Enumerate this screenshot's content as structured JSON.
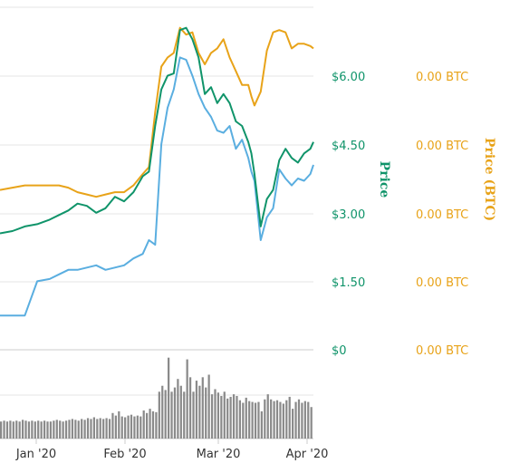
{
  "chart_data": {
    "type": "line",
    "grid": true,
    "y_axis_price": {
      "title": "Price",
      "ticks": [
        "$0",
        "$1.50",
        "$3.00",
        "$4.50",
        "$6.00"
      ],
      "values": [
        0,
        1.5,
        3.0,
        4.5,
        6.0
      ],
      "range": [
        0,
        7.5
      ]
    },
    "y_axis_btc": {
      "title": "Price (BTC)",
      "ticks": [
        "0.00 BTC",
        "0.00 BTC",
        "0.00 BTC",
        "0.00 BTC",
        "0.00 BTC"
      ]
    },
    "x_axis": {
      "ticks": [
        "Jan '20",
        "Feb '20",
        "Mar '20",
        "Apr '20"
      ],
      "tick_dates": [
        "2020-01-01",
        "2020-02-01",
        "2020-03-01",
        "2020-04-01"
      ],
      "range": [
        "2019-12-22",
        "2020-04-01"
      ]
    },
    "colors": {
      "price": "#10946a",
      "price_btc": "#e8a319",
      "market_cap": "#5aaee0",
      "volume": "#8a8a8a"
    },
    "series": [
      {
        "key": "price",
        "dates": [
          "2019-12-22",
          "2019-12-26",
          "2019-12-30",
          "2020-01-03",
          "2020-01-07",
          "2020-01-10",
          "2020-01-13",
          "2020-01-16",
          "2020-01-19",
          "2020-01-22",
          "2020-01-25",
          "2020-01-28",
          "2020-01-31",
          "2020-02-03",
          "2020-02-06",
          "2020-02-08",
          "2020-02-10",
          "2020-02-12",
          "2020-02-14",
          "2020-02-16",
          "2020-02-18",
          "2020-02-20",
          "2020-02-22",
          "2020-02-24",
          "2020-02-26",
          "2020-02-28",
          "2020-03-01",
          "2020-03-03",
          "2020-03-05",
          "2020-03-07",
          "2020-03-09",
          "2020-03-11",
          "2020-03-12",
          "2020-03-13",
          "2020-03-15",
          "2020-03-17",
          "2020-03-19",
          "2020-03-21",
          "2020-03-23",
          "2020-03-25",
          "2020-03-27",
          "2020-03-29",
          "2020-03-31",
          "2020-04-01"
        ],
        "values": [
          2.55,
          2.6,
          2.7,
          2.75,
          2.85,
          2.95,
          3.05,
          3.2,
          3.15,
          3.0,
          3.1,
          3.35,
          3.25,
          3.45,
          3.8,
          3.9,
          4.9,
          5.7,
          6.0,
          6.05,
          7.0,
          7.05,
          6.8,
          6.4,
          5.6,
          5.75,
          5.4,
          5.6,
          5.4,
          5.0,
          4.9,
          4.55,
          4.3,
          3.85,
          2.7,
          3.3,
          3.5,
          4.15,
          4.4,
          4.2,
          4.1,
          4.3,
          4.4,
          4.55
        ]
      },
      {
        "key": "price_btc",
        "dates": [
          "2019-12-22",
          "2019-12-26",
          "2019-12-30",
          "2020-01-03",
          "2020-01-07",
          "2020-01-10",
          "2020-01-13",
          "2020-01-16",
          "2020-01-19",
          "2020-01-22",
          "2020-01-25",
          "2020-01-28",
          "2020-01-31",
          "2020-02-03",
          "2020-02-06",
          "2020-02-08",
          "2020-02-10",
          "2020-02-12",
          "2020-02-14",
          "2020-02-16",
          "2020-02-18",
          "2020-02-20",
          "2020-02-22",
          "2020-02-24",
          "2020-02-26",
          "2020-02-28",
          "2020-03-01",
          "2020-03-03",
          "2020-03-05",
          "2020-03-07",
          "2020-03-09",
          "2020-03-11",
          "2020-03-12",
          "2020-03-13",
          "2020-03-15",
          "2020-03-17",
          "2020-03-19",
          "2020-03-21",
          "2020-03-23",
          "2020-03-25",
          "2020-03-27",
          "2020-03-29",
          "2020-03-31",
          "2020-04-01"
        ],
        "values": [
          3.5,
          3.55,
          3.6,
          3.6,
          3.6,
          3.6,
          3.55,
          3.45,
          3.4,
          3.35,
          3.4,
          3.45,
          3.45,
          3.6,
          3.85,
          4.0,
          5.2,
          6.2,
          6.4,
          6.5,
          7.05,
          6.9,
          6.95,
          6.5,
          6.25,
          6.5,
          6.6,
          6.8,
          6.4,
          6.1,
          5.8,
          5.8,
          5.55,
          5.35,
          5.65,
          6.55,
          6.95,
          7.0,
          6.95,
          6.6,
          6.7,
          6.7,
          6.65,
          6.6
        ]
      },
      {
        "key": "market_cap",
        "dates": [
          "2019-12-22",
          "2019-12-26",
          "2019-12-30",
          "2020-01-03",
          "2020-01-07",
          "2020-01-10",
          "2020-01-13",
          "2020-01-16",
          "2020-01-19",
          "2020-01-22",
          "2020-01-25",
          "2020-01-28",
          "2020-01-31",
          "2020-02-03",
          "2020-02-06",
          "2020-02-08",
          "2020-02-10",
          "2020-02-12",
          "2020-02-14",
          "2020-02-16",
          "2020-02-18",
          "2020-02-20",
          "2020-02-22",
          "2020-02-24",
          "2020-02-26",
          "2020-02-28",
          "2020-03-01",
          "2020-03-03",
          "2020-03-05",
          "2020-03-07",
          "2020-03-09",
          "2020-03-11",
          "2020-03-12",
          "2020-03-13",
          "2020-03-15",
          "2020-03-17",
          "2020-03-19",
          "2020-03-21",
          "2020-03-23",
          "2020-03-25",
          "2020-03-27",
          "2020-03-29",
          "2020-03-31",
          "2020-04-01"
        ],
        "values": [
          0.75,
          0.75,
          0.75,
          1.5,
          1.55,
          1.65,
          1.75,
          1.75,
          1.8,
          1.85,
          1.75,
          1.8,
          1.85,
          2.0,
          2.1,
          2.4,
          2.3,
          4.5,
          5.3,
          5.7,
          6.4,
          6.35,
          6.0,
          5.6,
          5.3,
          5.1,
          4.8,
          4.75,
          4.9,
          4.4,
          4.6,
          4.2,
          3.9,
          3.7,
          2.4,
          2.9,
          3.1,
          3.95,
          3.75,
          3.6,
          3.75,
          3.7,
          3.85,
          4.05
        ]
      }
    ],
    "volume": {
      "values": [
        0.2,
        0.21,
        0.2,
        0.21,
        0.2,
        0.21,
        0.2,
        0.22,
        0.21,
        0.2,
        0.21,
        0.2,
        0.21,
        0.2,
        0.21,
        0.2,
        0.2,
        0.21,
        0.22,
        0.21,
        0.2,
        0.21,
        0.22,
        0.23,
        0.22,
        0.21,
        0.23,
        0.22,
        0.24,
        0.23,
        0.25,
        0.23,
        0.24,
        0.23,
        0.24,
        0.23,
        0.3,
        0.27,
        0.32,
        0.26,
        0.25,
        0.27,
        0.28,
        0.26,
        0.27,
        0.26,
        0.33,
        0.3,
        0.35,
        0.32,
        0.31,
        0.55,
        0.62,
        0.57,
        0.95,
        0.55,
        0.6,
        0.7,
        0.62,
        0.55,
        0.93,
        0.72,
        0.55,
        0.68,
        0.62,
        0.72,
        0.6,
        0.75,
        0.52,
        0.58,
        0.54,
        0.5,
        0.55,
        0.47,
        0.49,
        0.52,
        0.5,
        0.45,
        0.42,
        0.48,
        0.44,
        0.43,
        0.42,
        0.43,
        0.32,
        0.46,
        0.52,
        0.46,
        0.44,
        0.45,
        0.43,
        0.41,
        0.45,
        0.49,
        0.35,
        0.43,
        0.46,
        0.42,
        0.44,
        0.43,
        0.37
      ]
    }
  }
}
